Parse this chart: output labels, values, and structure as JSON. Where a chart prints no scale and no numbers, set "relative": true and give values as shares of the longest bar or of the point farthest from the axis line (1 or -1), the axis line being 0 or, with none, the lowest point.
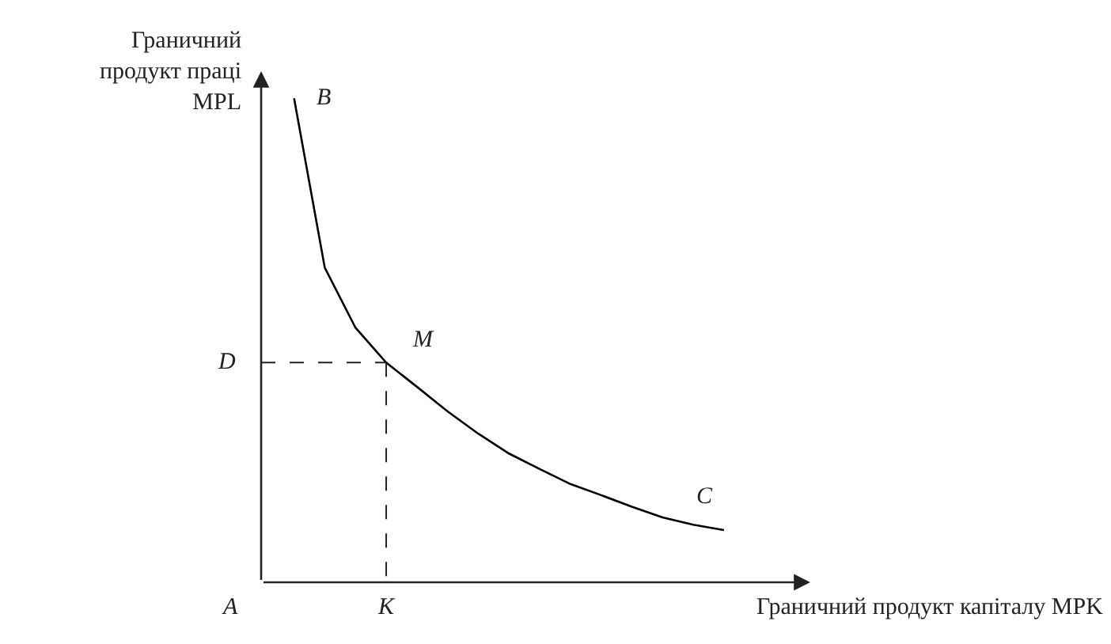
{
  "chart_data": {
    "type": "line",
    "relative": true,
    "xlabel": "Граничний продукт капіталу MPK",
    "ylabel": "Граничний продукт праці MPL",
    "categories": [
      null,
      null,
      null,
      null,
      null,
      null,
      null,
      null,
      null,
      null,
      null,
      null,
      null,
      null,
      null
    ],
    "series": [
      {
        "color": "#000000",
        "values": [
          1.0,
          0.65,
          0.526,
          0.454,
          0.404,
          0.353,
          0.307,
          0.266,
          0.234,
          0.203,
          0.18,
          0.156,
          0.134,
          0.119,
          0.108
        ]
      }
    ],
    "annotations": [
      "B",
      "M",
      "C",
      "D",
      "K",
      "A"
    ],
    "line_style": "solid",
    "marker": "none"
  }
}
